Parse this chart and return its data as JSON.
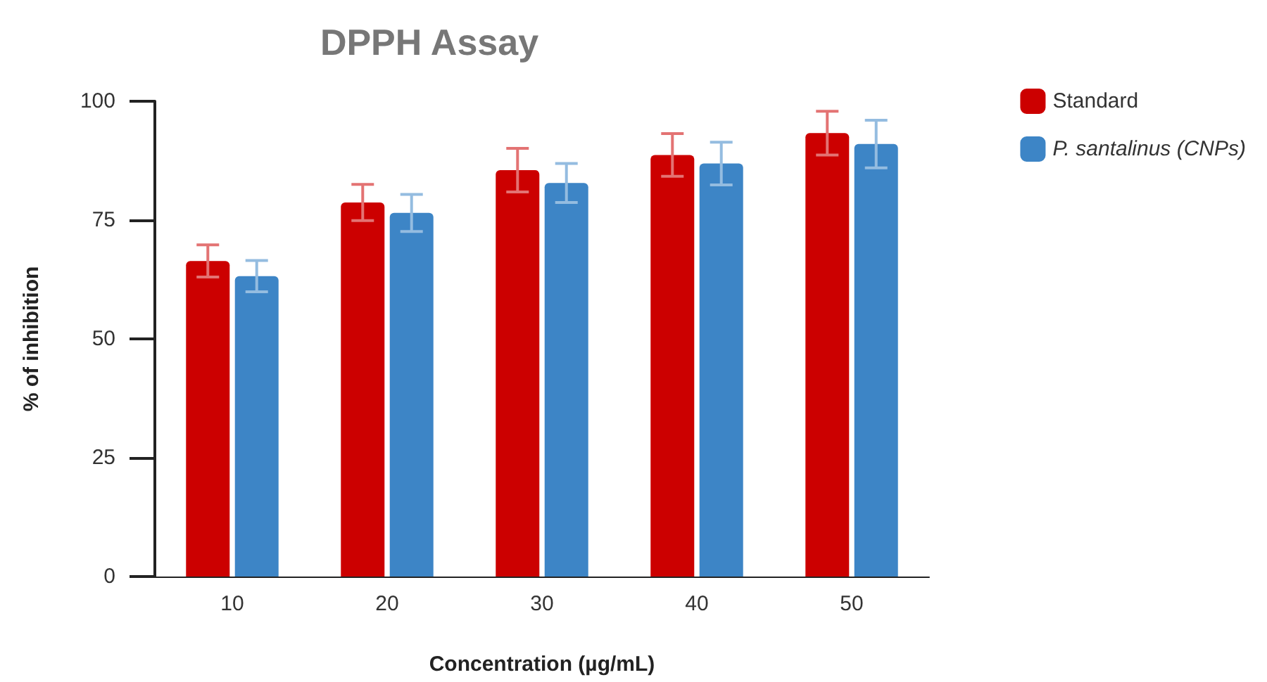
{
  "chart_data": {
    "type": "bar",
    "title": "DPPH Assay",
    "xlabel": "Concentration (µg/mL)",
    "ylabel": "% of inhibition",
    "categories": [
      "10",
      "20",
      "30",
      "40",
      "50"
    ],
    "series": [
      {
        "name": "Standard",
        "color": "#cc0000",
        "values": [
          66.4,
          78.7,
          85.5,
          88.7,
          93.3
        ],
        "errors": [
          3.4,
          3.8,
          4.6,
          4.5,
          4.6
        ]
      },
      {
        "name": "P. santalinus (CNPs)",
        "color": "#3d85c6",
        "values": [
          63.2,
          76.5,
          82.8,
          86.9,
          91.0
        ],
        "errors": [
          3.3,
          3.9,
          4.1,
          4.5,
          5.0
        ]
      }
    ],
    "ylim": [
      0,
      100
    ],
    "yticks": [
      0,
      25,
      50,
      75,
      100
    ],
    "grid": false,
    "legend": "top right"
  }
}
